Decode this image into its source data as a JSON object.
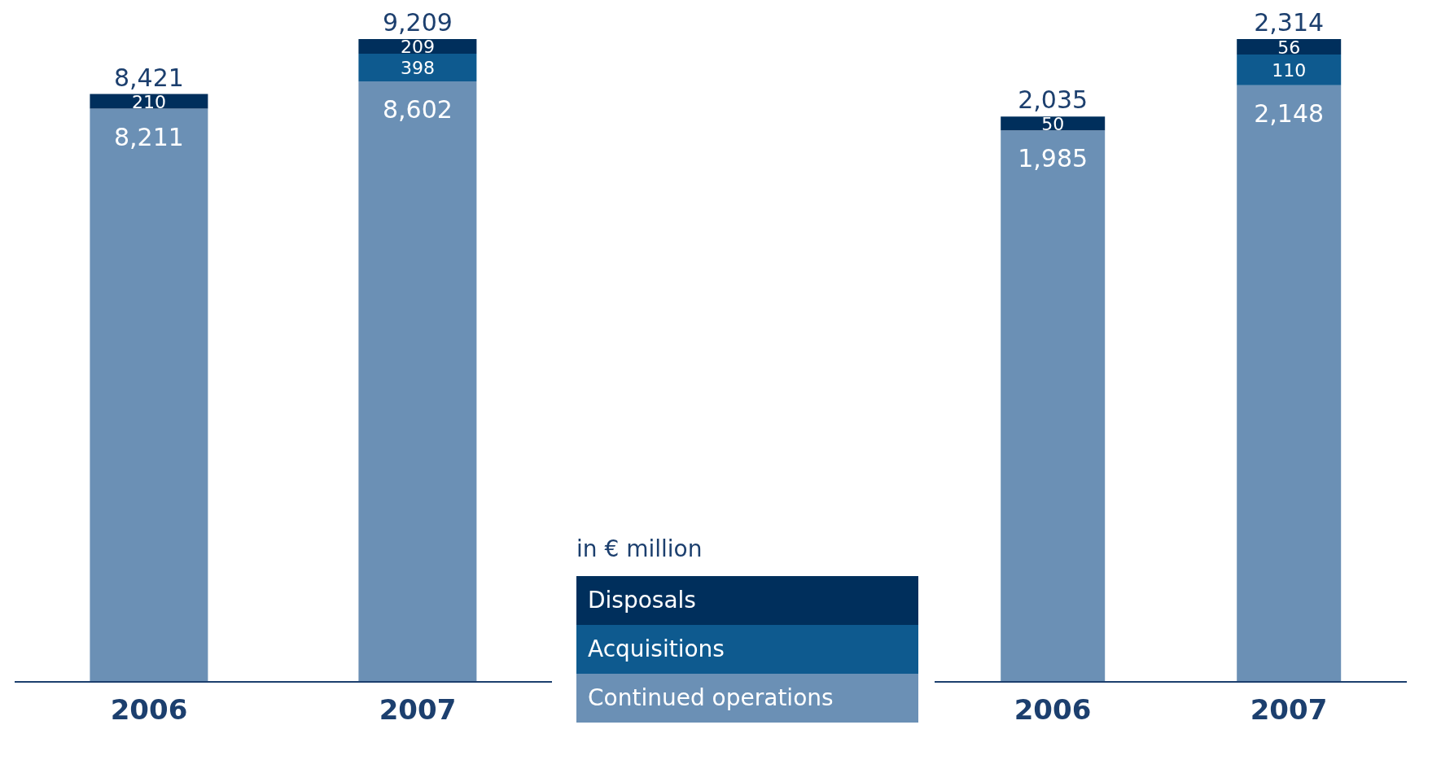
{
  "chart_data": [
    {
      "type": "bar",
      "stacked": true,
      "categories": [
        "2006",
        "2007"
      ],
      "totals": [
        "8,421",
        "9,209"
      ],
      "legend": "right",
      "annotations": [
        "in € million"
      ],
      "series": [
        {
          "name": "Continued operations",
          "color": "#6b90b5",
          "values": [
            8211,
            8602
          ],
          "value_labels": [
            "8,211",
            "8,602"
          ]
        },
        {
          "name": "Acquisitions",
          "color": "#0e5a8f",
          "values": [
            null,
            398
          ],
          "value_labels": [
            null,
            "398"
          ]
        },
        {
          "name": "Disposals",
          "color": "#002f5c",
          "values": [
            210,
            209
          ],
          "value_labels": [
            "210",
            "209"
          ]
        }
      ]
    },
    {
      "type": "bar",
      "stacked": true,
      "categories": [
        "2006",
        "2007"
      ],
      "totals": [
        "2,035",
        "2,314"
      ],
      "series": [
        {
          "color": "#6b90b5",
          "values": [
            1985,
            2148
          ],
          "value_labels": [
            "1,985",
            "2,148"
          ]
        },
        {
          "color": "#0e5a8f",
          "values": [
            null,
            110
          ],
          "value_labels": [
            null,
            "110"
          ]
        },
        {
          "color": "#002f5c",
          "values": [
            50,
            56
          ],
          "value_labels": [
            "50",
            "56"
          ]
        }
      ]
    }
  ]
}
